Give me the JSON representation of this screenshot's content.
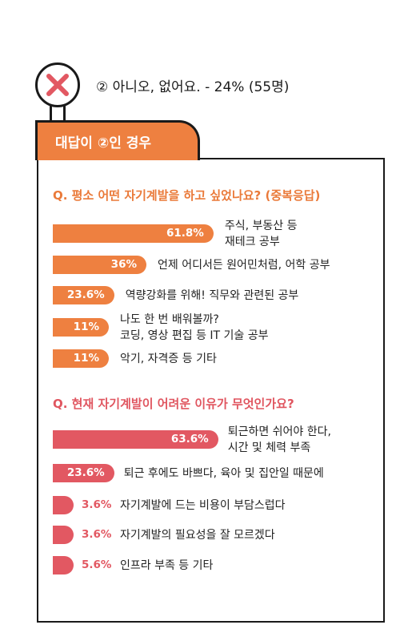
{
  "answer": {
    "text": "② 아니오, 없어요. - 24% (55명)",
    "icon": "x-icon",
    "icon_color": "#e25862"
  },
  "tab": {
    "label": "대답이 ②인 경우"
  },
  "colors": {
    "orange": "#ee8040",
    "red": "#e25862",
    "border": "#1a1a1a"
  },
  "chart_data": [
    {
      "type": "bar",
      "orientation": "horizontal",
      "title": "Q. 평소 어떤 자기계발을 하고 싶었나요? (중복응답)",
      "unit": "%",
      "categories": [
        [
          "주식, 부동산 등",
          "재테크 공부"
        ],
        [
          "언제 어디서든 원어민처럼, 어학 공부"
        ],
        [
          "역량강화를 위해! 직무와 관련된 공부"
        ],
        [
          "나도 한 번 배워볼까?",
          "코딩, 영상 편집 등 IT 기술 공부"
        ],
        [
          "악기, 자격증 등 기타"
        ]
      ],
      "values": [
        61.8,
        36,
        23.6,
        11,
        11
      ],
      "labels": [
        "61.8%",
        "36%",
        "23.6%",
        "11%",
        "11%"
      ],
      "color": "#ee8040"
    },
    {
      "type": "bar",
      "orientation": "horizontal",
      "title": "Q. 현재 자기계발이 어려운 이유가 무엇인가요?",
      "unit": "%",
      "categories": [
        [
          "퇴근하면 쉬어야 한다,",
          "시간 및 체력 부족"
        ],
        [
          "퇴근 후에도 바쁘다, 육아 및 집안일 때문에"
        ],
        [
          "자기계발에 드는 비용이 부담스럽다"
        ],
        [
          "자기계발의 필요성을 잘 모르겠다"
        ],
        [
          "인프라 부족 등 기타"
        ]
      ],
      "values": [
        63.6,
        23.6,
        3.6,
        3.6,
        5.6
      ],
      "labels": [
        "63.6%",
        "23.6%",
        "3.6%",
        "3.6%",
        "5.6%"
      ],
      "color": "#e25862"
    }
  ]
}
